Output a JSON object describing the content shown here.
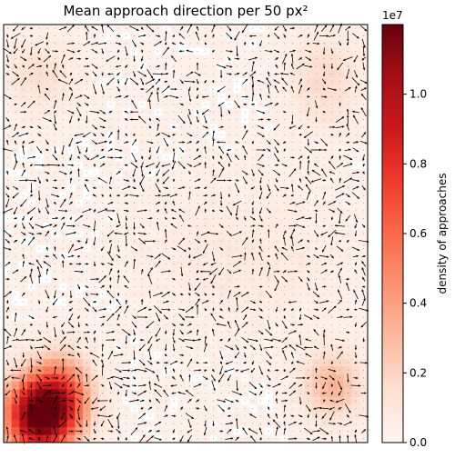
{
  "chart_data": {
    "type": "heatmap",
    "title": "Mean approach direction per 50 px²",
    "overlay": "quiver",
    "grid_cells": [
      46,
      55
    ],
    "colormap": "Reds",
    "colorbar": {
      "label": "density of approaches",
      "range": [
        0.0,
        12000000.0
      ],
      "offset_text": "1e7",
      "ticks": [
        0.0,
        0.2,
        0.4,
        0.6,
        0.8,
        1.0
      ],
      "tick_labels": [
        "0.0",
        "0.2",
        "0.4",
        "0.6",
        "0.8",
        "1.0"
      ]
    },
    "hotspots": [
      {
        "cx": 4,
        "cy": 51,
        "sx": 3.0,
        "sy": 3.5,
        "amp": 1.0
      },
      {
        "cx": 7,
        "cy": 48,
        "sx": 2.5,
        "sy": 3.5,
        "amp": 0.4
      },
      {
        "cx": 41,
        "cy": 47,
        "sx": 2.5,
        "sy": 3.0,
        "amp": 0.25
      },
      {
        "cx": 4,
        "cy": 6,
        "sx": 3.0,
        "sy": 3.0,
        "amp": 0.1
      },
      {
        "cx": 40,
        "cy": 7,
        "sx": 3.0,
        "sy": 4.0,
        "amp": 0.12
      },
      {
        "cx": 30,
        "cy": 30,
        "sx": 8.0,
        "sy": 6.0,
        "amp": 0.05
      }
    ],
    "background_level": 0.03,
    "xticks": [],
    "yticks": [],
    "grid": false
  }
}
